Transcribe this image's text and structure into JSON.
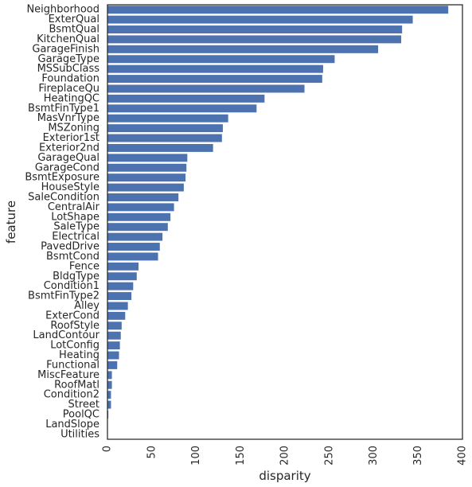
{
  "chart_data": {
    "type": "bar",
    "orientation": "horizontal",
    "xlabel": "disparity",
    "ylabel": "feature",
    "xlim": [
      0,
      400
    ],
    "xticks": [
      0,
      50,
      100,
      150,
      200,
      250,
      300,
      350,
      400
    ],
    "grid": false,
    "bar_color": "#4c72b0",
    "categories": [
      "Neighborhood",
      "ExterQual",
      "BsmtQual",
      "KitchenQual",
      "GarageFinish",
      "GarageType",
      "MSSubClass",
      "Foundation",
      "FireplaceQu",
      "HeatingQC",
      "BsmtFinType1",
      "MasVnrType",
      "MSZoning",
      "Exterior1st",
      "Exterior2nd",
      "GarageQual",
      "GarageCond",
      "BsmtExposure",
      "HouseStyle",
      "SaleCondition",
      "CentralAir",
      "LotShape",
      "SaleType",
      "Electrical",
      "PavedDrive",
      "BsmtCond",
      "Fence",
      "BldgType",
      "Condition1",
      "BsmtFinType2",
      "Alley",
      "ExterCond",
      "RoofStyle",
      "LandContour",
      "LotConfig",
      "Heating",
      "Functional",
      "MiscFeature",
      "RoofMatl",
      "Condition2",
      "Street",
      "PoolQC",
      "LandSlope",
      "Utilities"
    ],
    "values": [
      384,
      344,
      332,
      331,
      305,
      256,
      243,
      242,
      222,
      177,
      168,
      136,
      130,
      129,
      119,
      90,
      89,
      88,
      86,
      80,
      75,
      71,
      68,
      62,
      59,
      57,
      35,
      33,
      29,
      27,
      23,
      20,
      16,
      15,
      14,
      13,
      11,
      5,
      5,
      4,
      4,
      1,
      0,
      0
    ]
  }
}
